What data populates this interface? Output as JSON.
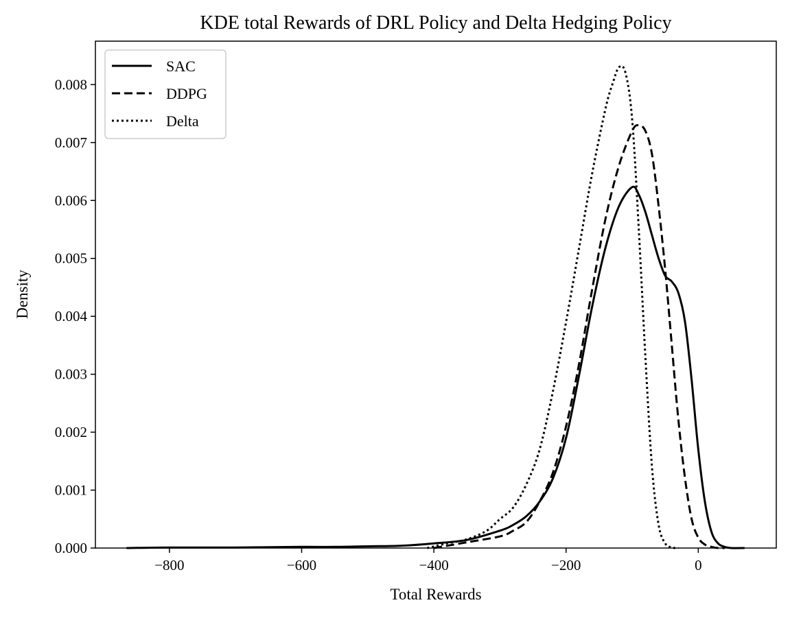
{
  "chart_data": {
    "type": "line",
    "title": "KDE total Rewards of DRL Policy and Delta Hedging Policy",
    "xlabel": "Total Rewards",
    "ylabel": "Density",
    "xlim": [
      -912,
      118
    ],
    "ylim": [
      0,
      0.00875
    ],
    "xticks": [
      -800,
      -600,
      -400,
      -200,
      0
    ],
    "xtick_labels": [
      "−800",
      "−600",
      "−400",
      "−200",
      "0"
    ],
    "yticks": [
      0,
      0.001,
      0.002,
      0.003,
      0.004,
      0.005,
      0.006,
      0.007,
      0.008
    ],
    "ytick_labels": [
      "0.000",
      "0.001",
      "0.002",
      "0.003",
      "0.004",
      "0.005",
      "0.006",
      "0.007",
      "0.008"
    ],
    "grid": false,
    "legend_position": "upper-left",
    "series": [
      {
        "name": "SAC",
        "style": "solid",
        "color": "#000000",
        "points": [
          [
            -865,
            0
          ],
          [
            -800,
            1e-05
          ],
          [
            -700,
            1e-05
          ],
          [
            -600,
            2e-05
          ],
          [
            -550,
            2e-05
          ],
          [
            -500,
            3e-05
          ],
          [
            -450,
            4e-05
          ],
          [
            -400,
            8e-05
          ],
          [
            -350,
            0.00014
          ],
          [
            -300,
            0.0003
          ],
          [
            -280,
            0.0004
          ],
          [
            -260,
            0.00055
          ],
          [
            -240,
            0.0008
          ],
          [
            -220,
            0.0012
          ],
          [
            -200,
            0.0019
          ],
          [
            -180,
            0.003
          ],
          [
            -160,
            0.0042
          ],
          [
            -140,
            0.0052
          ],
          [
            -120,
            0.0059
          ],
          [
            -100,
            0.00623
          ],
          [
            -90,
            0.0061
          ],
          [
            -80,
            0.0058
          ],
          [
            -70,
            0.0054
          ],
          [
            -60,
            0.005
          ],
          [
            -50,
            0.0047
          ],
          [
            -40,
            0.0046
          ],
          [
            -30,
            0.0044
          ],
          [
            -20,
            0.0039
          ],
          [
            -10,
            0.0029
          ],
          [
            0,
            0.0017
          ],
          [
            10,
            0.0008
          ],
          [
            20,
            0.00028
          ],
          [
            30,
            8e-05
          ],
          [
            40,
            2e-05
          ],
          [
            50,
            0
          ],
          [
            70,
            0
          ]
        ]
      },
      {
        "name": "DDPG",
        "style": "dashed",
        "color": "#000000",
        "points": [
          [
            -400,
            0
          ],
          [
            -350,
            0.0001
          ],
          [
            -300,
            0.0002
          ],
          [
            -280,
            0.0003
          ],
          [
            -260,
            0.00045
          ],
          [
            -240,
            0.0008
          ],
          [
            -220,
            0.0013
          ],
          [
            -200,
            0.0021
          ],
          [
            -180,
            0.0032
          ],
          [
            -160,
            0.0045
          ],
          [
            -140,
            0.0057
          ],
          [
            -120,
            0.0066
          ],
          [
            -100,
            0.0072
          ],
          [
            -90,
            0.0073
          ],
          [
            -80,
            0.0072
          ],
          [
            -70,
            0.0068
          ],
          [
            -60,
            0.0059
          ],
          [
            -50,
            0.0048
          ],
          [
            -40,
            0.0035
          ],
          [
            -30,
            0.0022
          ],
          [
            -20,
            0.0012
          ],
          [
            -10,
            0.0005
          ],
          [
            0,
            0.00018
          ],
          [
            10,
            6e-05
          ],
          [
            20,
            2e-05
          ],
          [
            30,
            0
          ],
          [
            40,
            0
          ]
        ]
      },
      {
        "name": "Delta",
        "style": "dotted",
        "color": "#000000",
        "points": [
          [
            -410,
            0
          ],
          [
            -380,
            8e-05
          ],
          [
            -350,
            0.00015
          ],
          [
            -320,
            0.0003
          ],
          [
            -300,
            0.0005
          ],
          [
            -280,
            0.0007
          ],
          [
            -260,
            0.0011
          ],
          [
            -240,
            0.0017
          ],
          [
            -220,
            0.0027
          ],
          [
            -200,
            0.0039
          ],
          [
            -180,
            0.0052
          ],
          [
            -160,
            0.0065
          ],
          [
            -140,
            0.0076
          ],
          [
            -130,
            0.008
          ],
          [
            -120,
            0.0083
          ],
          [
            -110,
            0.0082
          ],
          [
            -100,
            0.0074
          ],
          [
            -90,
            0.0055
          ],
          [
            -80,
            0.0033
          ],
          [
            -70,
            0.0014
          ],
          [
            -60,
            0.0004
          ],
          [
            -50,
            8e-05
          ],
          [
            -40,
            1e-05
          ],
          [
            -30,
            0
          ]
        ]
      }
    ]
  }
}
